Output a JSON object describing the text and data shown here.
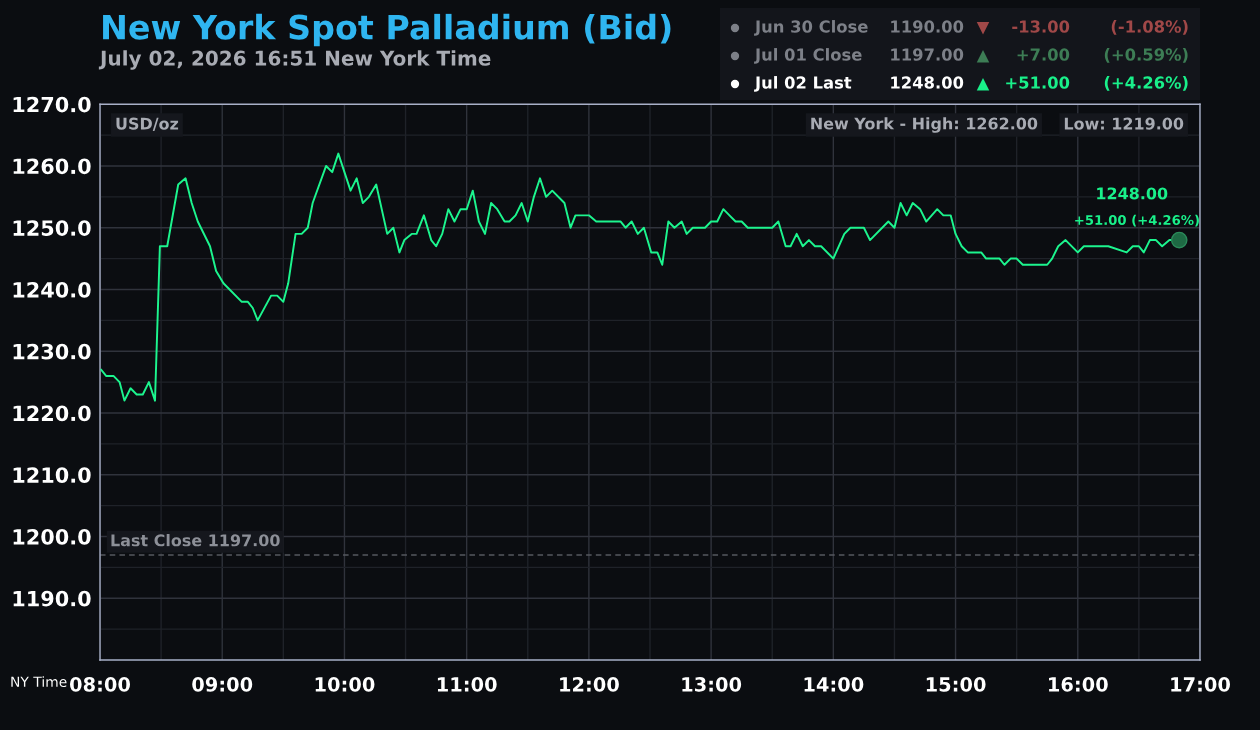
{
  "chart_data": {
    "type": "line",
    "title": "New York Spot Palladium (Bid)",
    "subtitle": "July 02, 2026 16:51 New York Time",
    "xlabel": "NY Time",
    "ylabel": "USD/oz",
    "x": [
      8.01,
      8.05,
      8.11,
      8.16,
      8.2,
      8.25,
      8.3,
      8.35,
      8.4,
      8.45,
      8.49,
      8.55,
      8.64,
      8.7,
      8.75,
      8.8,
      8.9,
      8.95,
      9.01,
      9.16,
      9.21,
      9.25,
      9.29,
      9.4,
      9.45,
      9.5,
      9.54,
      9.6,
      9.65,
      9.7,
      9.74,
      9.85,
      9.9,
      9.95,
      10.05,
      10.1,
      10.15,
      10.2,
      10.26,
      10.35,
      10.4,
      10.45,
      10.49,
      10.55,
      10.59,
      10.65,
      10.71,
      10.75,
      10.8,
      10.85,
      10.9,
      10.95,
      11.0,
      11.05,
      11.1,
      11.15,
      11.2,
      11.25,
      11.31,
      11.35,
      11.4,
      11.45,
      11.5,
      11.55,
      11.6,
      11.65,
      11.7,
      11.8,
      11.85,
      11.89,
      12.0,
      12.06,
      12.26,
      12.3,
      12.35,
      12.4,
      12.45,
      12.51,
      12.56,
      12.6,
      12.65,
      12.7,
      12.76,
      12.8,
      12.85,
      12.95,
      13.0,
      13.05,
      13.1,
      13.15,
      13.2,
      13.25,
      13.3,
      13.5,
      13.55,
      13.61,
      13.65,
      13.7,
      13.75,
      13.8,
      13.85,
      13.9,
      14.0,
      14.09,
      14.14,
      14.25,
      14.3,
      14.45,
      14.5,
      14.55,
      14.6,
      14.65,
      14.71,
      14.76,
      14.85,
      14.9,
      14.96,
      15.0,
      15.05,
      15.1,
      15.21,
      15.25,
      15.36,
      15.4,
      15.45,
      15.5,
      15.55,
      15.75,
      15.79,
      15.84,
      15.9,
      16.0,
      16.05,
      16.15,
      16.25,
      16.4,
      16.45,
      16.5,
      16.54,
      16.59,
      16.64,
      16.69,
      16.75,
      16.83
    ],
    "values": [
      1227,
      1226,
      1226,
      1225,
      1222,
      1224,
      1223,
      1223,
      1225,
      1222,
      1247,
      1247,
      1257,
      1258,
      1254,
      1251,
      1247,
      1243,
      1241,
      1238,
      1238,
      1237,
      1235,
      1239,
      1239,
      1238,
      1241,
      1249,
      1249,
      1250,
      1254,
      1260,
      1259,
      1262,
      1256,
      1258,
      1254,
      1255,
      1257,
      1249,
      1250,
      1246,
      1248,
      1249,
      1249,
      1252,
      1248,
      1247,
      1249,
      1253,
      1251,
      1253,
      1253,
      1256,
      1251,
      1249,
      1254,
      1253,
      1251,
      1251,
      1252,
      1254,
      1251,
      1255,
      1258,
      1255,
      1256,
      1254,
      1250,
      1252,
      1252,
      1251,
      1251,
      1250,
      1251,
      1249,
      1250,
      1246,
      1246,
      1244,
      1251,
      1250,
      1251,
      1249,
      1250,
      1250,
      1251,
      1251,
      1253,
      1252,
      1251,
      1251,
      1250,
      1250,
      1251,
      1247,
      1247,
      1249,
      1247,
      1248,
      1247,
      1247,
      1245,
      1249,
      1250,
      1250,
      1248,
      1251,
      1250,
      1254,
      1252,
      1254,
      1253,
      1251,
      1253,
      1252,
      1252,
      1249,
      1247,
      1246,
      1246,
      1245,
      1245,
      1244,
      1245,
      1245,
      1244,
      1244,
      1245,
      1247,
      1248,
      1246,
      1247,
      1247,
      1247,
      1246,
      1247,
      1247,
      1246,
      1248,
      1248,
      1247,
      1248,
      1248
    ],
    "color": "#1cf58e",
    "line_style": "solid",
    "xlim": [
      8,
      17
    ],
    "xticks": [
      {
        "value": 8,
        "label": "08:00"
      },
      {
        "value": 8.5,
        "label": null
      },
      {
        "value": 9,
        "label": "09:00"
      },
      {
        "value": 9.5,
        "label": null
      },
      {
        "value": 10,
        "label": "10:00"
      },
      {
        "value": 10.5,
        "label": null
      },
      {
        "value": 11,
        "label": "11:00"
      },
      {
        "value": 11.5,
        "label": null
      },
      {
        "value": 12,
        "label": "12:00"
      },
      {
        "value": 12.5,
        "label": null
      },
      {
        "value": 13,
        "label": "13:00"
      },
      {
        "value": 13.5,
        "label": null
      },
      {
        "value": 14,
        "label": "14:00"
      },
      {
        "value": 14.5,
        "label": null
      },
      {
        "value": 15,
        "label": "15:00"
      },
      {
        "value": 15.5,
        "label": null
      },
      {
        "value": 16,
        "label": "16:00"
      },
      {
        "value": 16.5,
        "label": null
      },
      {
        "value": 17,
        "label": "17:00"
      }
    ],
    "ylim": [
      1180,
      1270
    ],
    "yticks": [
      {
        "value": 1185,
        "label": null
      },
      {
        "value": 1190,
        "label": "1190.0"
      },
      {
        "value": 1195,
        "label": null
      },
      {
        "value": 1200,
        "label": "1200.0"
      },
      {
        "value": 1205,
        "label": null
      },
      {
        "value": 1210,
        "label": "1210.0"
      },
      {
        "value": 1215,
        "label": null
      },
      {
        "value": 1220,
        "label": "1220.0"
      },
      {
        "value": 1225,
        "label": null
      },
      {
        "value": 1230,
        "label": "1230.0"
      },
      {
        "value": 1235,
        "label": null
      },
      {
        "value": 1240,
        "label": "1240.0"
      },
      {
        "value": 1245,
        "label": null
      },
      {
        "value": 1250,
        "label": "1250.0"
      },
      {
        "value": 1255,
        "label": null
      },
      {
        "value": 1260,
        "label": "1260.0"
      },
      {
        "value": 1265,
        "label": null
      },
      {
        "value": 1270,
        "label": "1270.0"
      }
    ],
    "grid": true,
    "ref_lines": [
      {
        "axis": "y",
        "value": 1197,
        "label": "Last Close 1197.00",
        "color": "#55585f",
        "line_style": "dashed"
      }
    ],
    "annotations": [
      "Jun 30 Close",
      "1190.00",
      "▼",
      "-13.00",
      "(-1.08%)",
      "Jul 01 Close",
      "1197.00",
      "▲",
      "+7.00",
      "(+0.59%)",
      "Jul 02 Last",
      "1248.00",
      "▲",
      "+51.00",
      "(+4.26%)",
      "New York - High: 1262.00",
      "Low: 1219.00",
      {
        "text": "1248.00",
        "x": 16.83,
        "y": 1248
      },
      {
        "text": "+51.00 (+4.26%)",
        "x": 16.83,
        "y": 1248
      }
    ]
  }
}
